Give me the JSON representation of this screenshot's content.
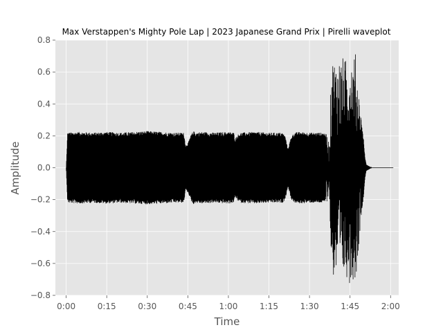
{
  "chart_data": {
    "type": "area",
    "title": "Max Verstappen's Mighty Pole Lap | 2023 Japanese Grand Prix | Pirelli waveplot",
    "xlabel": "Time",
    "ylabel": "Amplitude",
    "x_unit": "seconds",
    "xlim": [
      -4,
      123
    ],
    "ylim": [
      -0.8,
      0.8
    ],
    "x_ticks": [
      {
        "value": 0,
        "label": "0:00"
      },
      {
        "value": 15,
        "label": "0:15"
      },
      {
        "value": 30,
        "label": "0:30"
      },
      {
        "value": 45,
        "label": "0:45"
      },
      {
        "value": 60,
        "label": "1:00"
      },
      {
        "value": 75,
        "label": "1:15"
      },
      {
        "value": 90,
        "label": "1:30"
      },
      {
        "value": 105,
        "label": "1:45"
      },
      {
        "value": 120,
        "label": "2:00"
      }
    ],
    "y_ticks": [
      {
        "value": 0.8,
        "label": "0.8"
      },
      {
        "value": 0.6,
        "label": "0.6"
      },
      {
        "value": 0.4,
        "label": "0.4"
      },
      {
        "value": 0.2,
        "label": "0.2"
      },
      {
        "value": 0.0,
        "label": "0.0"
      },
      {
        "value": -0.2,
        "label": "−0.2"
      },
      {
        "value": -0.4,
        "label": "−0.4"
      },
      {
        "value": -0.6,
        "label": "−0.6"
      },
      {
        "value": -0.8,
        "label": "−0.8"
      }
    ],
    "grid": true,
    "colors": {
      "background": "#e5e5e5",
      "grid": "#ffffff",
      "wave": "#000000",
      "tick": "#555555"
    },
    "envelope": {
      "time": [
        0,
        0.5,
        5,
        10,
        15,
        20,
        25,
        30,
        35,
        40,
        43.5,
        44.2,
        45.2,
        46,
        47,
        48,
        50,
        55,
        60,
        62,
        62.5,
        63.3,
        64.5,
        70,
        75,
        80,
        81,
        82,
        82.7,
        83.3,
        84.5,
        86,
        90,
        95,
        96.6,
        97.3,
        98.2,
        100,
        102,
        103.5,
        105,
        106,
        107,
        108,
        109,
        110,
        110.5,
        111,
        113,
        121
      ],
      "amplitude": [
        0.0,
        0.22,
        0.225,
        0.22,
        0.225,
        0.22,
        0.225,
        0.23,
        0.225,
        0.22,
        0.22,
        0.14,
        0.16,
        0.2,
        0.23,
        0.22,
        0.225,
        0.22,
        0.225,
        0.22,
        0.18,
        0.205,
        0.22,
        0.225,
        0.22,
        0.22,
        0.2,
        0.12,
        0.16,
        0.2,
        0.22,
        0.225,
        0.22,
        0.22,
        0.21,
        0.15,
        0.7,
        0.68,
        0.7,
        0.68,
        0.73,
        0.7,
        0.72,
        0.55,
        0.32,
        0.18,
        0.07,
        0.02,
        0.0,
        0.0
      ]
    }
  }
}
